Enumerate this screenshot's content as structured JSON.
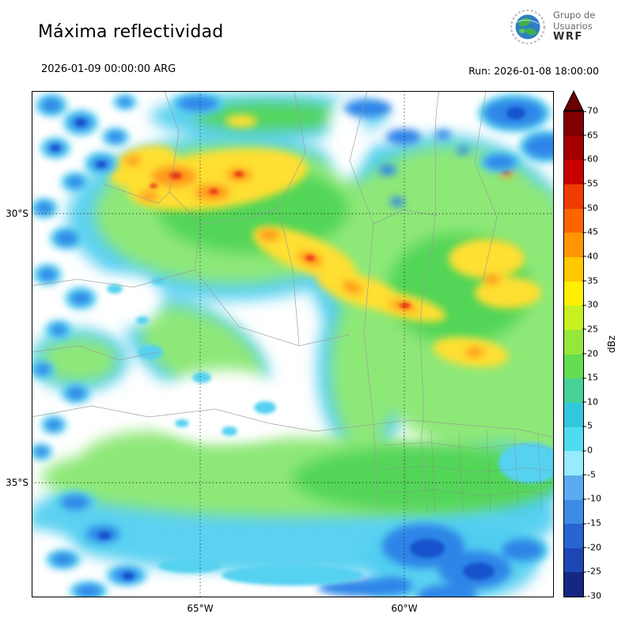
{
  "header": {
    "title": "Máxima reflectividad",
    "logo": {
      "line1": "Grupo de",
      "line2": "Usuarios",
      "line3": "WRF"
    }
  },
  "time": {
    "valid": "2026-01-09 00:00:00 ARG",
    "run": "Run: 2026-01-08 18:00:00"
  },
  "map": {
    "lat_labels": [
      "30°S",
      "35°S"
    ],
    "lon_labels": [
      "65°W",
      "60°W"
    ]
  },
  "colorbar": {
    "unit": "dBz",
    "ticks": [
      "70",
      "65",
      "60",
      "55",
      "50",
      "45",
      "40",
      "35",
      "30",
      "25",
      "20",
      "15",
      "10",
      "5",
      "0",
      "-5",
      "-10",
      "-15",
      "-20",
      "-25",
      "-30"
    ],
    "colors_top_to_bottom": [
      "#800000",
      "#a40000",
      "#c80000",
      "#f03c00",
      "#ff6400",
      "#ff9600",
      "#ffc800",
      "#fff000",
      "#c8f020",
      "#96e63c",
      "#64dc50",
      "#46d296",
      "#32c8dc",
      "#50dcf0",
      "#96ebff",
      "#5aaaf0",
      "#3c8ce6",
      "#2864d2",
      "#1e46b4",
      "#142882"
    ],
    "arrow_color": "#6b0000"
  },
  "chart_data": {
    "type": "heatmap",
    "title": "Máxima reflectividad",
    "units": "dBz",
    "valid_time": "2026-01-09 00:00:00 ARG",
    "run_time": "2026-01-08 18:00:00",
    "colorbar_range": [
      -30,
      70
    ],
    "colorbar_tick_step": 5,
    "lat_gridlines": [
      "30°S",
      "35°S"
    ],
    "lon_gridlines": [
      "65°W",
      "60°W"
    ],
    "description": "WRF model maximum radar reflectivity field over central Argentina; highest reflectivity (orange/red, 45-60 dBz) in a NW band and scattered cells, widespread 20-35 dBz (green/yellow) areas, weak echoes (blue, <10 dBz) along west and south edges"
  }
}
